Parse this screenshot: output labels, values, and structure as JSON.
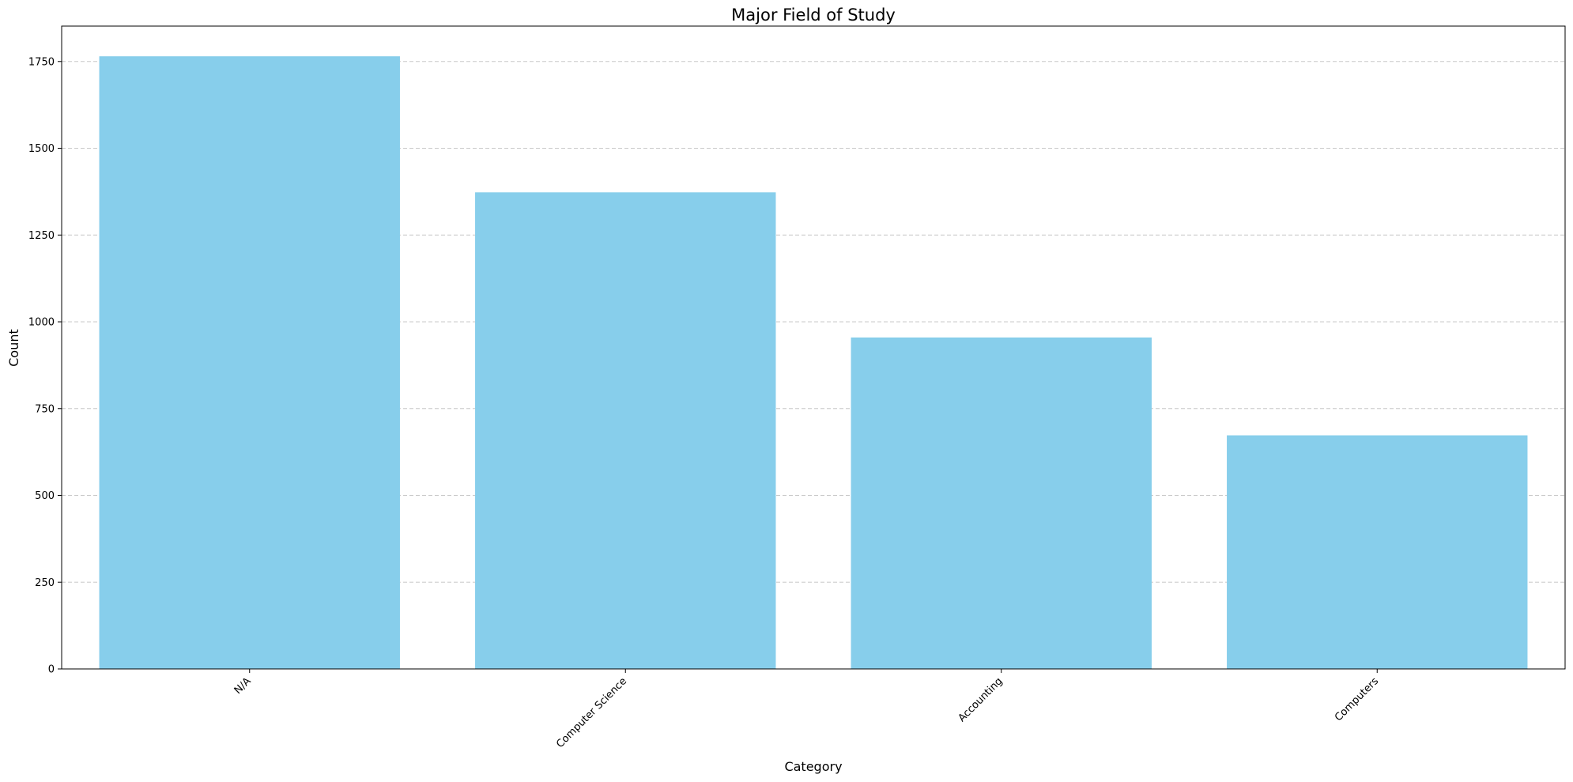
{
  "chart_data": {
    "type": "bar",
    "title": "Major Field of Study",
    "xlabel": "Category",
    "ylabel": "Count",
    "categories": [
      "N/A",
      "Computer Science",
      "Accounting",
      "Computers"
    ],
    "values": [
      1765,
      1373,
      955,
      673
    ],
    "ylim": [
      0,
      1852
    ],
    "yticks": [
      0,
      250,
      500,
      750,
      1000,
      1250,
      1500,
      1750
    ],
    "ytick_labels": [
      "0",
      "250",
      "500",
      "750",
      "1000",
      "1250",
      "1500",
      "1750"
    ],
    "grid": "y-dashed",
    "bar_color": "#87CEEB",
    "grid_color": "#c8c8c8"
  }
}
